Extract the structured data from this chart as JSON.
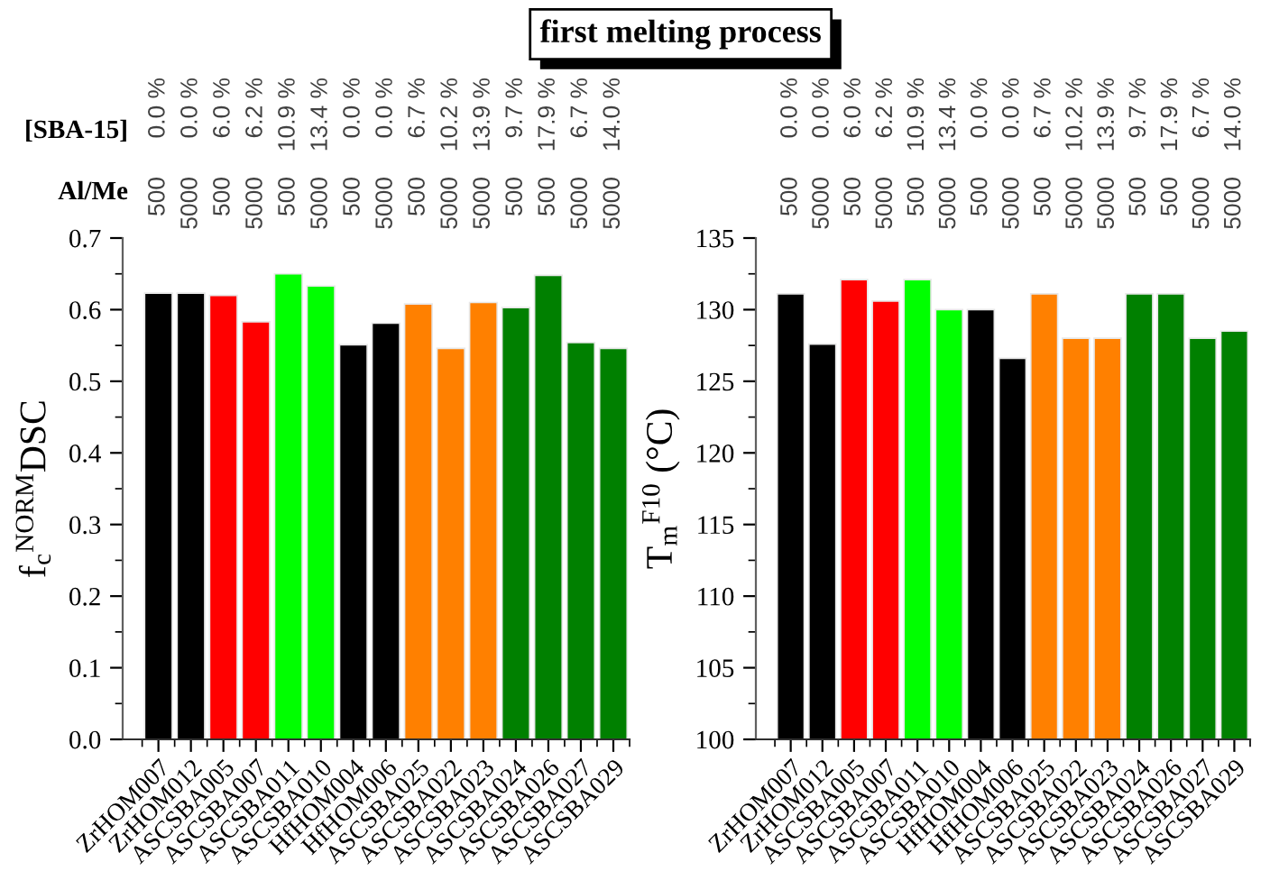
{
  "chart_data": [
    {
      "type": "bar",
      "title": "first melting process",
      "ylabel": "f$_{c}$$^{NORM}$DSC",
      "categories": [
        "ZrHOM007",
        "ZrHOM012",
        "ASCSBA005",
        "ASCSBA007",
        "ASCSBA011",
        "ASCSBA010",
        "HfHOM004",
        "HfHOM006",
        "ASCSBA025",
        "ASCSBA022",
        "ASCSBA023",
        "ASCSBA024",
        "ASCSBA026",
        "ASCSBA027",
        "ASCSBA029"
      ],
      "values": [
        0.623,
        0.623,
        0.62,
        0.583,
        0.65,
        0.633,
        0.551,
        0.581,
        0.608,
        0.546,
        0.61,
        0.603,
        0.648,
        0.554,
        0.546
      ],
      "colors": [
        "#000000",
        "#000000",
        "#ff0000",
        "#ff0000",
        "#00ff00",
        "#00ff00",
        "#000000",
        "#000000",
        "#ff8000",
        "#ff8000",
        "#ff8000",
        "#008000",
        "#008000",
        "#008000",
        "#008000"
      ],
      "ylim": [
        0,
        0.7
      ],
      "yticks": [
        {
          "value": 0,
          "label": "0.0"
        },
        {
          "value": 0.1,
          "label": "0.1"
        },
        {
          "value": 0.2,
          "label": "0.2"
        },
        {
          "value": 0.3,
          "label": "0.3"
        },
        {
          "value": 0.4,
          "label": "0.4"
        },
        {
          "value": 0.5,
          "label": "0.5"
        },
        {
          "value": 0.6,
          "label": "0.6"
        },
        {
          "value": 0.7,
          "label": "0.7"
        }
      ],
      "annotations": [
        "[SBA-15]",
        "0.0 %",
        "0.0 %",
        "6.0 %",
        "6.2 %",
        "10.9 %",
        "13.4 %",
        "0.0 %",
        "0.0 %",
        "6.7 %",
        "10.2 %",
        "13.9 %",
        "9.7 %",
        "17.9 %",
        "6.7 %",
        "14.0 %",
        "Al/Me",
        "500",
        "5000",
        "500",
        "5000",
        "500",
        "5000",
        "500",
        "5000",
        "500",
        "5000",
        "5000",
        "500",
        "500",
        "5000",
        "5000"
      ]
    },
    {
      "type": "bar",
      "ylabel": "T$_{m}$$^{F10}$ (°C)",
      "categories": [
        "ZrHOM007",
        "ZrHOM012",
        "ASCSBA005",
        "ASCSBA007",
        "ASCSBA011",
        "ASCSBA010",
        "HfHOM004",
        "HfHOM006",
        "ASCSBA025",
        "ASCSBA022",
        "ASCSBA023",
        "ASCSBA024",
        "ASCSBA026",
        "ASCSBA027",
        "ASCSBA029"
      ],
      "values": [
        131.1,
        127.6,
        132.1,
        130.6,
        132.1,
        130.0,
        130.0,
        126.6,
        131.1,
        128.0,
        128.0,
        131.1,
        131.1,
        128.0,
        128.5
      ],
      "colors": [
        "#000000",
        "#000000",
        "#ff0000",
        "#ff0000",
        "#00ff00",
        "#00ff00",
        "#000000",
        "#000000",
        "#ff8000",
        "#ff8000",
        "#ff8000",
        "#008000",
        "#008000",
        "#008000",
        "#008000"
      ],
      "ylim": [
        100,
        135
      ],
      "yticks": [
        100,
        105,
        110,
        115,
        120,
        125,
        130,
        135
      ],
      "annotations": [
        "0.0 %",
        "0.0 %",
        "6.0 %",
        "6.2 %",
        "10.9 %",
        "13.4 %",
        "0.0 %",
        "0.0 %",
        "6.7 %",
        "10.2 %",
        "13.9 %",
        "9.7 %",
        "17.9 %",
        "6.7 %",
        "14.0 %",
        "500",
        "5000",
        "500",
        "5000",
        "500",
        "5000",
        "500",
        "5000",
        "500",
        "5000",
        "5000",
        "500",
        "500",
        "5000",
        "5000"
      ]
    }
  ]
}
